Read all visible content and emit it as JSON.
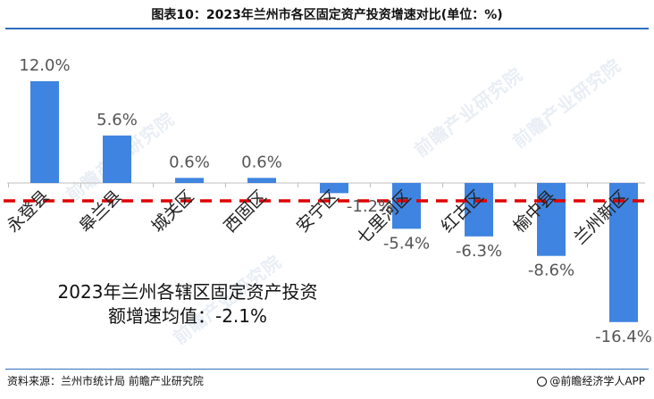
{
  "title": "图表10：2023年兰州市各区固定资产投资增速对比(单位：%)",
  "annotation": {
    "line1": "2023年兰州各辖区固定资产投资",
    "line2": "额增速均值：-2.1%"
  },
  "source": "资料来源：兰州市统计局 前瞻产业研究院",
  "brand": "@前瞻经济学人APP",
  "watermark": "前瞻产业研究院",
  "colors": {
    "bar": "#3f84e0",
    "avg_line": "#e00000",
    "title_rule": "#2f6ebd"
  },
  "chart_data": {
    "type": "bar",
    "title": "图表10：2023年兰州市各区固定资产投资增速对比(单位：%)",
    "categories": [
      "永登县",
      "皋兰县",
      "城关区",
      "西固区",
      "安宁区",
      "七里河区",
      "红古区",
      "榆中县",
      "兰州新区"
    ],
    "values": [
      12.0,
      5.6,
      0.6,
      0.6,
      -1.2,
      -5.4,
      -6.3,
      -8.6,
      -16.4
    ],
    "value_labels": [
      "12.0%",
      "5.6%",
      "0.6%",
      "0.6%",
      "-1.2%",
      "-5.4%",
      "-6.3%",
      "-8.6%",
      "-16.4%"
    ],
    "average": -2.1,
    "unit": "%",
    "grid": false,
    "legend": "none"
  }
}
